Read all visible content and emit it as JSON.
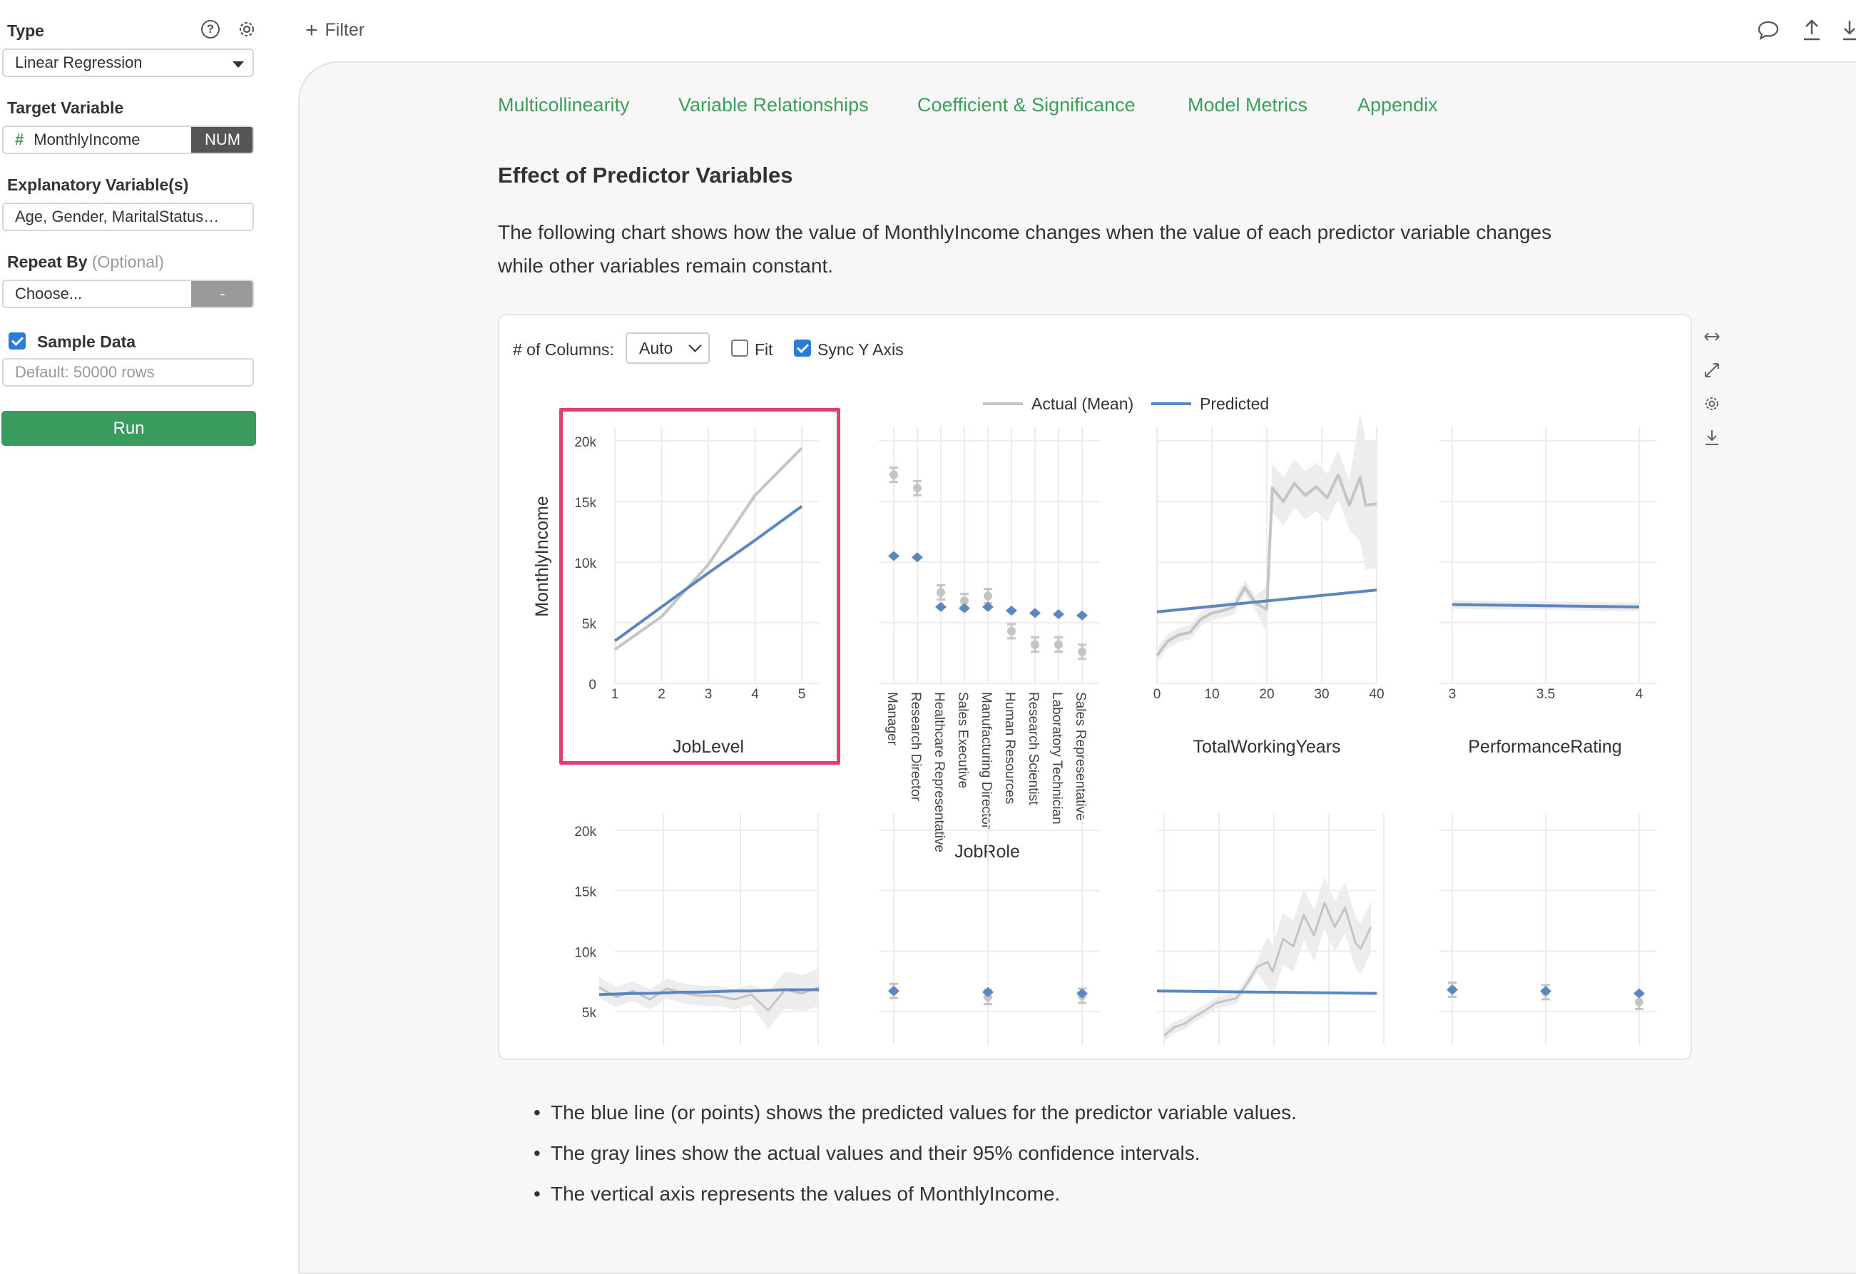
{
  "sidebar": {
    "type_label": "Type",
    "type_value": "Linear Regression",
    "target_label": "Target Variable",
    "target_value": "MonthlyIncome",
    "target_type": "NUM",
    "explanatory_label": "Explanatory Variable(s)",
    "explanatory_value": "Age, Gender, MaritalStatus…",
    "repeat_label": "Repeat By",
    "repeat_optional": "(Optional)",
    "repeat_value": "Choose...",
    "repeat_tag": "-",
    "sample_label": "Sample Data",
    "sample_checked": true,
    "sample_placeholder": "Default: 50000 rows",
    "run_label": "Run"
  },
  "topbar": {
    "filter_label": "Filter"
  },
  "tabs": [
    {
      "label": "Multicollinearity"
    },
    {
      "label": "Variable Relationships"
    },
    {
      "label": "Coefficient & Significance"
    },
    {
      "label": "Model Metrics"
    },
    {
      "label": "Appendix"
    }
  ],
  "section": {
    "title": "Effect of Predictor Variables",
    "description_line1": "The following chart shows how the value of MonthlyIncome changes when the value of each predictor variable changes",
    "description_line2": "while other variables remain constant."
  },
  "controls": {
    "columns_label": "# of Columns:",
    "columns_value": "Auto",
    "fit_label": "Fit",
    "fit_checked": false,
    "sync_label": "Sync Y Axis",
    "sync_checked": true
  },
  "colors": {
    "actual": "#c4c4c4",
    "predicted": "#5b87c0",
    "accent": "#3d9e5c",
    "highlight": "#e0406b"
  },
  "bullets": [
    "The blue line (or points) shows the predicted values for the predictor variable values.",
    "The gray lines show the actual values and their 95% confidence intervals.",
    "The vertical axis represents the values of MonthlyIncome."
  ],
  "chart_data": {
    "type": "line",
    "legend": [
      "Actual (Mean)",
      "Predicted"
    ],
    "legend_position": "top-center",
    "ylabel": "MonthlyIncome",
    "y_ticks": [
      "0",
      "5k",
      "10k",
      "15k",
      "20k"
    ],
    "y_ticks_row2": [
      "5k",
      "10k",
      "15k",
      "20k"
    ],
    "ylim": [
      0,
      20000
    ],
    "highlighted_panel": "JobLevel",
    "panels": [
      {
        "xlabel": "JobLevel",
        "kind": "line",
        "x": [
          1,
          2,
          3,
          4,
          5
        ],
        "x_ticks": [
          "1",
          "2",
          "3",
          "4",
          "5"
        ],
        "actual": [
          2800,
          5500,
          9800,
          15500,
          19400
        ],
        "predicted": [
          3500,
          6300,
          9100,
          11800,
          14600
        ]
      },
      {
        "xlabel": "JobRole",
        "kind": "points",
        "categories": [
          "Manager",
          "Research Director",
          "Healthcare Representative",
          "Sales Executive",
          "Manufacturing Director",
          "Human Resources",
          "Research Scientist",
          "Laboratory Technician",
          "Sales Representative"
        ],
        "actual": [
          17200,
          16100,
          7500,
          6800,
          7200,
          4300,
          3200,
          3200,
          2600
        ],
        "predicted": [
          10500,
          10400,
          6300,
          6200,
          6300,
          6000,
          5800,
          5700,
          5600
        ]
      },
      {
        "xlabel": "TotalWorkingYears",
        "kind": "line",
        "x": [
          0,
          2,
          4,
          6,
          8,
          10,
          12,
          14,
          16,
          18,
          20,
          21,
          23,
          25,
          27,
          29,
          31,
          33,
          35,
          37,
          38,
          40
        ],
        "x_ticks": [
          "0",
          "10",
          "20",
          "30",
          "40"
        ],
        "actual": [
          2300,
          3500,
          4000,
          4200,
          5300,
          5800,
          6000,
          6300,
          7900,
          6600,
          6100,
          16100,
          15000,
          16500,
          15500,
          16200,
          15300,
          17200,
          14700,
          17000,
          14700,
          14800
        ],
        "predicted_x": [
          0,
          40
        ],
        "predicted": [
          5900,
          7700
        ]
      },
      {
        "xlabel": "PerformanceRating",
        "kind": "line",
        "x": [
          3,
          4
        ],
        "x_ticks": [
          "3",
          "3.5",
          "4"
        ],
        "predicted": [
          6500,
          6300
        ]
      },
      {
        "xlabel": "",
        "kind": "line",
        "x": [
          1,
          2,
          3,
          4,
          5,
          6,
          7,
          8,
          9,
          10,
          11,
          12,
          13,
          14
        ],
        "actual": [
          7000,
          6200,
          6700,
          6000,
          6900,
          6500,
          6300,
          6300,
          6000,
          6400,
          5100,
          6800,
          6500,
          7000
        ],
        "predicted": [
          6400,
          6450,
          6500,
          6500,
          6550,
          6600,
          6600,
          6650,
          6700,
          6700,
          6750,
          6800,
          6800,
          6800
        ]
      },
      {
        "xlabel": "",
        "kind": "points",
        "x": [
          1,
          2,
          3
        ],
        "actual": [
          6700,
          6200,
          6300
        ],
        "predicted": [
          6700,
          6600,
          6500
        ]
      },
      {
        "xlabel": "",
        "kind": "line",
        "x": [
          0,
          2,
          4,
          6,
          8,
          10,
          12,
          14,
          16,
          18,
          20,
          21,
          23,
          25,
          27,
          29,
          31,
          33,
          35,
          37,
          38,
          40
        ],
        "actual": [
          3000,
          3700,
          4000,
          4600,
          5100,
          5700,
          5900,
          6100,
          7300,
          8700,
          9100,
          8300,
          11000,
          10400,
          13000,
          11300,
          14000,
          12000,
          13600,
          10700,
          10200,
          12000
        ],
        "predicted_x": [
          0,
          40
        ],
        "predicted": [
          6700,
          6500
        ]
      },
      {
        "xlabel": "",
        "kind": "points",
        "x": [
          1,
          2,
          3
        ],
        "actual": [
          6800,
          6600,
          5800
        ],
        "predicted": [
          6800,
          6700,
          6500
        ]
      }
    ]
  }
}
